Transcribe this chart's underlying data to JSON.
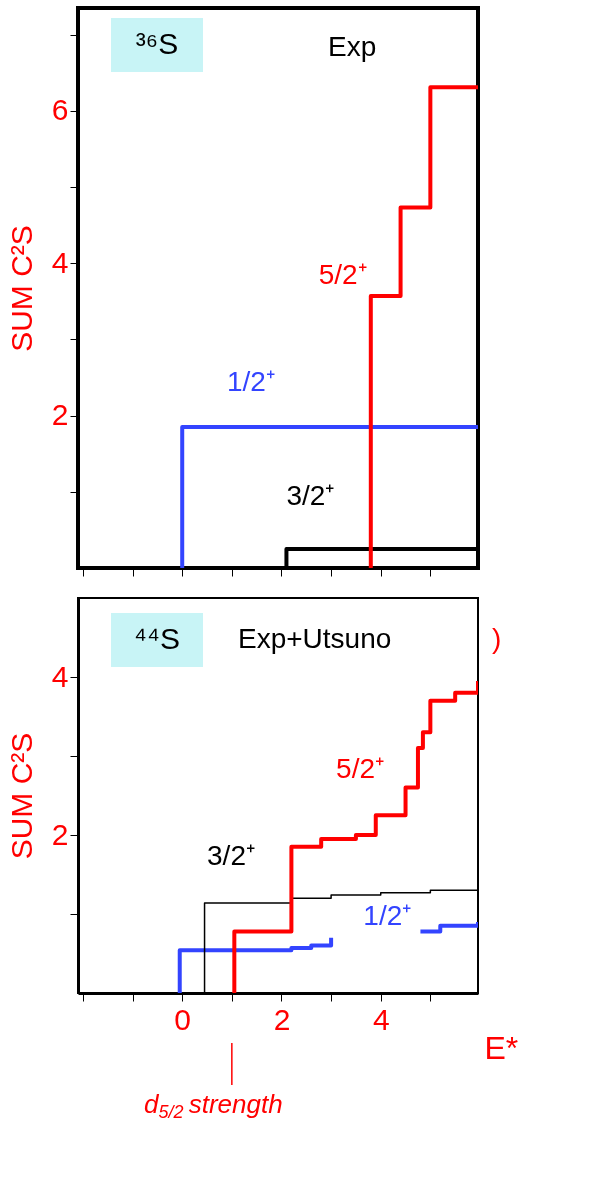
{
  "chart_data": [
    {
      "type": "step",
      "ylabel": "SUM C²S",
      "xlim": [
        -2.1,
        5.96
      ],
      "ylim": [
        0,
        7.35
      ],
      "xticks": [
        {
          "value": -2,
          "label": null
        },
        {
          "value": -1,
          "label": null
        },
        {
          "value": 0,
          "label": null
        },
        {
          "value": 1,
          "label": null
        },
        {
          "value": 2,
          "label": null
        },
        {
          "value": 3,
          "label": null
        },
        {
          "value": 4,
          "label": null
        },
        {
          "value": 5,
          "label": null
        }
      ],
      "yticks": [
        {
          "value": 1,
          "label": null
        },
        2,
        {
          "value": 3,
          "label": null
        },
        4,
        {
          "value": 5,
          "label": null
        },
        6,
        {
          "value": 7,
          "label": null
        }
      ],
      "tick_labels": "y",
      "grid": false,
      "legend": false,
      "annotations": [
        "³⁶S",
        "Exp"
      ],
      "series": [
        {
          "name": "1/2⁺",
          "color": "#3344ff",
          "x": [
            0,
            0,
            5.96
          ],
          "values": [
            0,
            1.85,
            1.85
          ]
        },
        {
          "name": "3/2⁺",
          "color": "#000000",
          "x": [
            2.1,
            2.1,
            5.96
          ],
          "values": [
            0,
            0.25,
            0.25
          ]
        },
        {
          "name": "5/2⁺",
          "color": "#ff0000",
          "x": [
            3.8,
            3.8,
            4.4,
            5.0,
            5.96
          ],
          "values": [
            0,
            3.57,
            4.73,
            6.31,
            6.31
          ]
        }
      ]
    },
    {
      "type": "step",
      "ylabel": "SUM C²S",
      "xlabel": "E*",
      "xlim": [
        -2.1,
        5.96
      ],
      "ylim": [
        0,
        5
      ],
      "xticks": [
        {
          "value": -2,
          "label": null
        },
        {
          "value": -1,
          "label": null
        },
        0,
        {
          "value": 1,
          "label": null
        },
        2,
        {
          "value": 3,
          "label": null
        },
        4,
        {
          "value": 5,
          "label": null
        }
      ],
      "yticks": [
        {
          "value": 1,
          "label": null
        },
        2,
        {
          "value": 3,
          "label": null
        },
        4
      ],
      "grid": false,
      "legend": false,
      "annotations": [
        "⁴⁴S",
        "Exp+Utsuno",
        ")",
        "d$_{5/2}$ strength"
      ],
      "series": [
        {
          "name": "1/2⁺",
          "color": "#3344ff",
          "x": [
            -0.05,
            -0.05,
            2.2,
            2.6,
            3.0,
            3.5,
            4.8,
            5.2,
            5.96
          ],
          "values": [
            0,
            0.54,
            0.57,
            0.6,
            0.7,
            null,
            0.78,
            0.85,
            0.9
          ]
        },
        {
          "name": "3/2⁺",
          "color": "#000000",
          "x": [
            0.45,
            0.45,
            2.2,
            3.0,
            4.0,
            5.0,
            5.96
          ],
          "values": [
            0,
            1.14,
            1.2,
            1.24,
            1.27,
            1.3,
            1.35
          ]
        },
        {
          "name": "5/2⁺",
          "color": "#ff0000",
          "x": [
            1.05,
            1.05,
            2.2,
            2.8,
            3.5,
            3.9,
            4.5,
            4.75,
            4.85,
            5.0,
            5.5,
            5.96
          ],
          "values": [
            0,
            0.78,
            1.85,
            1.95,
            2.0,
            2.25,
            2.6,
            3.1,
            3.3,
            3.7,
            3.8,
            3.95
          ]
        }
      ]
    }
  ]
}
